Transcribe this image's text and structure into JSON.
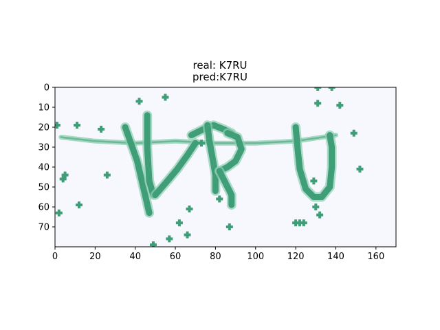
{
  "chart_data": {
    "type": "heatmap",
    "title_lines": [
      "real: K7RU",
      "pred:K7RU"
    ],
    "image_width": 170,
    "image_height": 80,
    "xlim": [
      0,
      170
    ],
    "ylim": [
      80,
      0
    ],
    "xticks": [
      0,
      20,
      40,
      60,
      80,
      100,
      120,
      140,
      160
    ],
    "yticks": [
      0,
      10,
      20,
      30,
      40,
      50,
      60,
      70
    ],
    "grid": false,
    "colors": {
      "background": "#f7f8fd",
      "ink": "#3f9d77",
      "ink_light": "#8fcfb2"
    },
    "captcha_text": "K7RU",
    "glyph_strokes": [
      [
        [
          35,
          20
        ],
        [
          41,
          37
        ],
        [
          47,
          63
        ]
      ],
      [
        [
          46,
          14
        ],
        [
          46,
          30
        ],
        [
          47,
          47
        ],
        [
          49,
          54
        ]
      ],
      [
        [
          50,
          54
        ],
        [
          56,
          47
        ],
        [
          61,
          41
        ],
        [
          66,
          34
        ],
        [
          70,
          28
        ]
      ],
      [
        [
          68,
          24
        ],
        [
          74,
          21
        ],
        [
          79,
          19
        ],
        [
          84,
          21
        ],
        [
          88,
          23
        ]
      ],
      [
        [
          76,
          19
        ],
        [
          77,
          27
        ],
        [
          79,
          38
        ],
        [
          80,
          44
        ],
        [
          80,
          52
        ]
      ],
      [
        [
          86,
          23
        ],
        [
          91,
          25
        ],
        [
          93,
          31
        ],
        [
          90,
          37
        ],
        [
          86,
          40
        ],
        [
          82,
          42
        ]
      ],
      [
        [
          82,
          42
        ],
        [
          85,
          48
        ],
        [
          88,
          54
        ],
        [
          88,
          59
        ]
      ],
      [
        [
          120,
          20
        ],
        [
          121,
          31
        ],
        [
          122,
          41
        ],
        [
          125,
          51
        ],
        [
          129,
          55
        ],
        [
          133,
          55
        ],
        [
          137,
          50
        ],
        [
          138,
          40
        ],
        [
          138,
          30
        ],
        [
          137,
          24
        ]
      ]
    ],
    "noise_line": [
      [
        3,
        25
      ],
      [
        20,
        27
      ],
      [
        40,
        28
      ],
      [
        60,
        27
      ],
      [
        80,
        28
      ],
      [
        100,
        28
      ],
      [
        120,
        27
      ],
      [
        140,
        24
      ]
    ],
    "noise_dots": [
      [
        1,
        19
      ],
      [
        11,
        19
      ],
      [
        23,
        21
      ],
      [
        26,
        44
      ],
      [
        42,
        7
      ],
      [
        55,
        5
      ],
      [
        4,
        46
      ],
      [
        5,
        44
      ],
      [
        2,
        63
      ],
      [
        12,
        59
      ],
      [
        49,
        79
      ],
      [
        57,
        76
      ],
      [
        62,
        68
      ],
      [
        66,
        74
      ],
      [
        67,
        61
      ],
      [
        73,
        28
      ],
      [
        87,
        70
      ],
      [
        82,
        56
      ],
      [
        120,
        68
      ],
      [
        122,
        68
      ],
      [
        124,
        68
      ],
      [
        130,
        60
      ],
      [
        132,
        64
      ],
      [
        131,
        0
      ],
      [
        138,
        0
      ],
      [
        131,
        8
      ],
      [
        142,
        9
      ],
      [
        149,
        23
      ],
      [
        152,
        41
      ],
      [
        129,
        47
      ]
    ]
  }
}
